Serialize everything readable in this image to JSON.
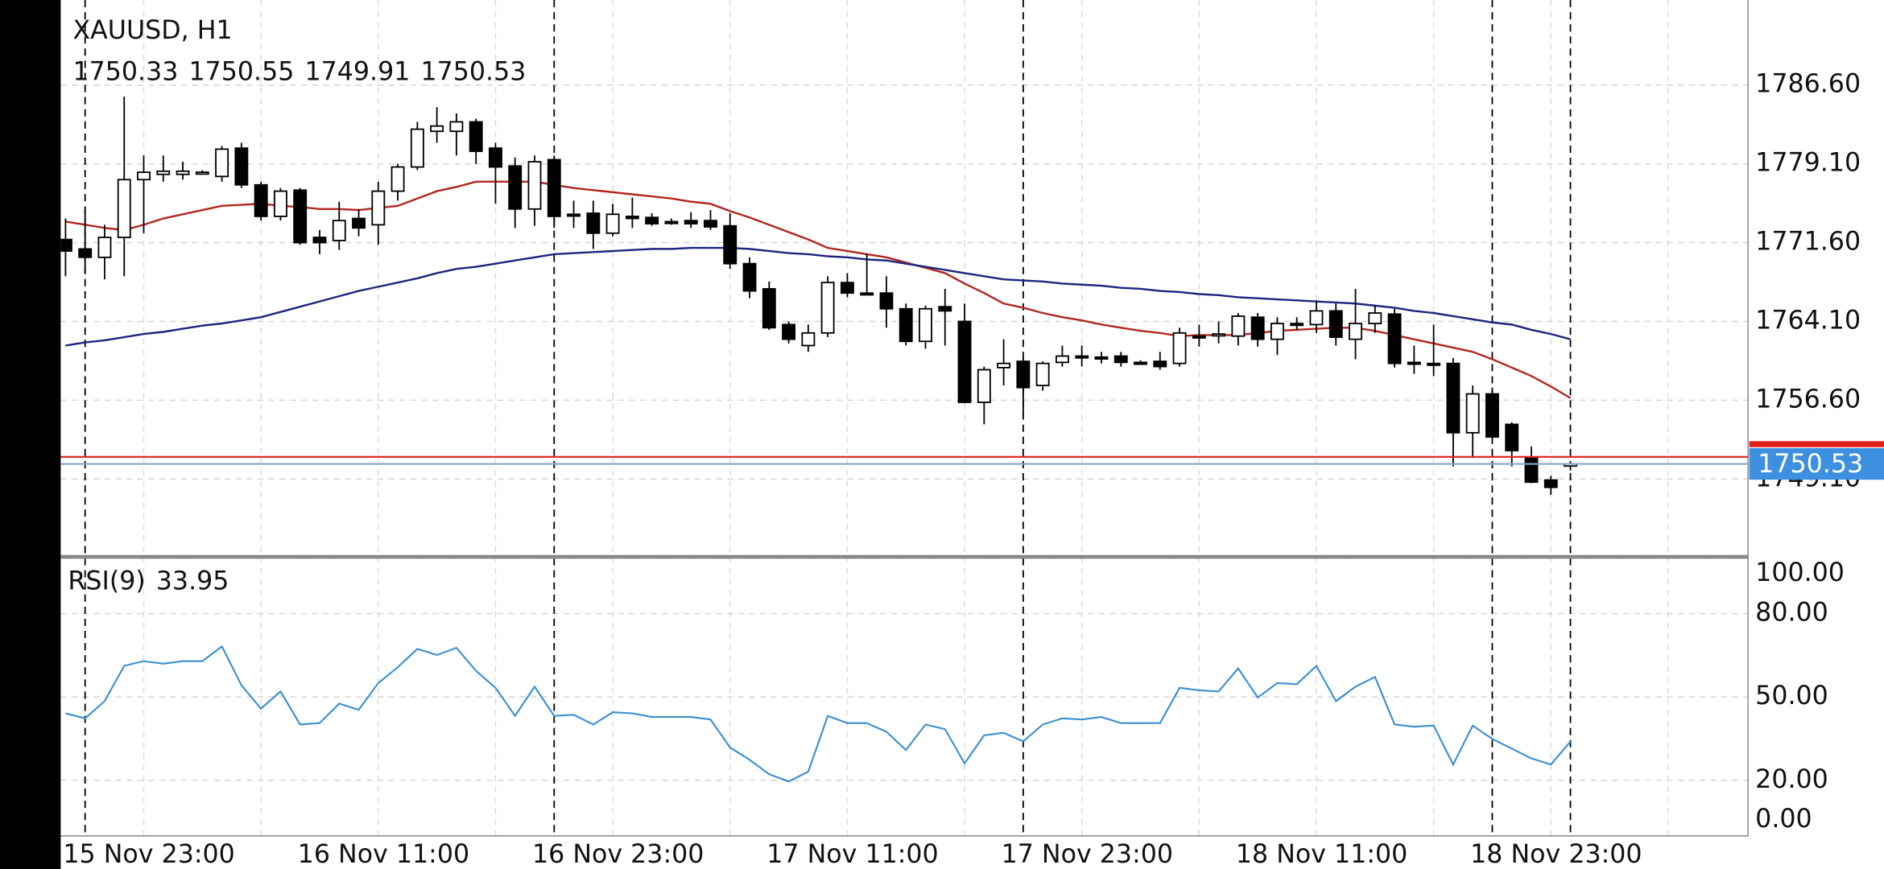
{
  "chart_data": [
    {
      "type": "candlestick",
      "title": "XAUUSD, H1",
      "categories": [
        "15 Nov 23:00",
        null,
        null,
        null,
        null,
        null,
        null,
        null,
        null,
        null,
        null,
        null,
        "16 Nov 11:00",
        null,
        null,
        null,
        null,
        null,
        null,
        null,
        null,
        null,
        null,
        null,
        "16 Nov 23:00",
        null,
        null,
        null,
        null,
        null,
        null,
        null,
        null,
        null,
        null,
        null,
        "17 Nov 11:00",
        null,
        null,
        null,
        null,
        null,
        null,
        null,
        null,
        null,
        null,
        null,
        "17 Nov 23:00",
        null,
        null,
        null,
        null,
        null,
        null,
        null,
        null,
        null,
        null,
        null,
        "18 Nov 11:00",
        null,
        null,
        null,
        null,
        null,
        null,
        null,
        null,
        null,
        null,
        null,
        "18 Nov 23:00",
        null,
        null,
        null,
        null,
        null
      ],
      "open": [
        1771.9,
        1771.0,
        1770.2,
        1772.1,
        1777.6,
        1778.1,
        1778.1,
        1778.3,
        1777.9,
        1780.6,
        1777.1,
        1774.1,
        1776.6,
        1772.1,
        1771.8,
        1773.9,
        1773.3,
        1776.5,
        1778.8,
        1782.2,
        1782.2,
        1783.1,
        1780.6,
        1778.9,
        1774.8,
        1779.5,
        1774.3,
        1774.4,
        1772.5,
        1774.1,
        1774.0,
        1773.6,
        1773.7,
        1773.7,
        1773.2,
        1769.6,
        1767.2,
        1763.8,
        1761.8,
        1763.0,
        1767.8,
        1766.8,
        1766.8,
        1765.3,
        1762.2,
        1765.5,
        1764.1,
        1756.4,
        1759.7,
        1760.3,
        1758.0,
        1760.2,
        1760.8,
        1760.7,
        1760.8,
        1760.2,
        1760.3,
        1760.1,
        1762.7,
        1762.8,
        1762.7,
        1764.5,
        1762.4,
        1763.9,
        1763.8,
        1765.1,
        1762.4,
        1763.9,
        1764.8,
        1760.2,
        1760.1,
        1760.1,
        1753.5,
        1757.2,
        1754.3,
        1751.1,
        1749.0,
        1750.33
      ],
      "high": [
        1773.9,
        1774.8,
        1773.3,
        1785.5,
        1779.9,
        1779.9,
        1779.3,
        1778.5,
        1780.8,
        1781.1,
        1777.4,
        1776.8,
        1776.8,
        1772.8,
        1775.5,
        1774.8,
        1777.4,
        1779.1,
        1783.1,
        1784.5,
        1783.9,
        1783.4,
        1781.1,
        1779.7,
        1779.9,
        1779.9,
        1775.6,
        1775.6,
        1775.3,
        1775.9,
        1774.4,
        1773.9,
        1774.5,
        1774.7,
        1774.4,
        1770.2,
        1767.9,
        1764.1,
        1763.8,
        1768.4,
        1768.7,
        1770.5,
        1768.4,
        1765.8,
        1765.6,
        1767.2,
        1765.8,
        1759.8,
        1762.4,
        1760.6,
        1760.3,
        1761.8,
        1761.8,
        1761.2,
        1761.2,
        1760.4,
        1761.2,
        1763.5,
        1763.8,
        1764.1,
        1764.9,
        1764.9,
        1764.5,
        1764.5,
        1766.1,
        1765.8,
        1767.2,
        1765.6,
        1765.3,
        1761.8,
        1763.8,
        1760.6,
        1758.0,
        1757.8,
        1754.5,
        1752.2,
        1749.4,
        1750.55
      ],
      "low": [
        1768.4,
        1768.7,
        1768.1,
        1768.4,
        1772.5,
        1777.4,
        1777.6,
        1778.1,
        1777.4,
        1776.8,
        1773.7,
        1773.7,
        1771.4,
        1770.5,
        1770.9,
        1772.2,
        1771.4,
        1775.6,
        1778.5,
        1781.1,
        1779.9,
        1779.1,
        1775.3,
        1773.0,
        1773.2,
        1773.0,
        1773.0,
        1771.0,
        1772.2,
        1773.0,
        1773.2,
        1773.3,
        1773.0,
        1772.8,
        1769.1,
        1766.3,
        1763.3,
        1762.0,
        1761.2,
        1762.6,
        1766.4,
        1766.6,
        1763.5,
        1761.8,
        1761.5,
        1761.8,
        1756.3,
        1754.3,
        1758.0,
        1755.2,
        1757.5,
        1759.8,
        1759.8,
        1760.1,
        1759.8,
        1760.0,
        1759.5,
        1759.8,
        1761.7,
        1762.0,
        1761.8,
        1761.7,
        1760.9,
        1763.3,
        1763.0,
        1761.8,
        1760.5,
        1763.0,
        1759.7,
        1759.1,
        1758.9,
        1750.3,
        1751.1,
        1752.9,
        1750.3,
        1748.7,
        1747.6,
        1749.91
      ],
      "close": [
        1770.8,
        1770.2,
        1772.1,
        1777.6,
        1778.3,
        1778.4,
        1778.4,
        1778.3,
        1780.5,
        1777.1,
        1774.1,
        1776.5,
        1771.6,
        1771.6,
        1773.7,
        1773.0,
        1776.5,
        1778.8,
        1782.4,
        1782.7,
        1783.1,
        1780.3,
        1778.8,
        1774.8,
        1779.3,
        1774.1,
        1774.2,
        1772.5,
        1774.3,
        1773.9,
        1773.4,
        1773.5,
        1773.4,
        1773.1,
        1769.6,
        1767.0,
        1763.5,
        1762.4,
        1763.0,
        1767.8,
        1766.8,
        1766.7,
        1765.3,
        1762.2,
        1765.3,
        1765.1,
        1756.4,
        1759.5,
        1760.1,
        1757.8,
        1760.1,
        1760.8,
        1760.7,
        1760.6,
        1760.2,
        1760.1,
        1759.8,
        1763.0,
        1762.6,
        1762.9,
        1764.6,
        1762.4,
        1763.9,
        1763.8,
        1765.1,
        1762.6,
        1763.9,
        1764.9,
        1760.1,
        1760.1,
        1760.0,
        1753.5,
        1757.2,
        1753.1,
        1751.8,
        1748.8,
        1748.3,
        1750.53
      ],
      "overlays": [
        {
          "color": "#b3261e",
          "values": [
            1773.6,
            1773.3,
            1773.0,
            1772.8,
            1773.3,
            1773.9,
            1774.3,
            1774.7,
            1775.1,
            1775.2,
            1775.3,
            1775.1,
            1775.0,
            1774.8,
            1774.8,
            1774.7,
            1774.9,
            1775.1,
            1775.8,
            1776.5,
            1776.9,
            1777.4,
            1777.4,
            1777.4,
            1777.4,
            1777.1,
            1776.8,
            1776.6,
            1776.4,
            1776.2,
            1776.0,
            1775.8,
            1775.5,
            1775.3,
            1774.6,
            1774.0,
            1773.3,
            1772.6,
            1771.9,
            1771.1,
            1770.8,
            1770.5,
            1770.2,
            1769.7,
            1769.2,
            1768.7,
            1767.7,
            1766.8,
            1765.8,
            1765.4,
            1764.9,
            1764.5,
            1764.2,
            1763.8,
            1763.5,
            1763.2,
            1763.0,
            1762.7,
            1762.8,
            1762.8,
            1762.8,
            1763.0,
            1763.2,
            1763.3,
            1763.4,
            1763.5,
            1763.5,
            1763.2,
            1762.8,
            1762.4,
            1762.0,
            1761.6,
            1761.2,
            1760.5,
            1759.7,
            1758.9,
            1757.9,
            1756.8
          ]
        },
        {
          "color": "#1c2480",
          "values": [
            1761.8,
            1762.1,
            1762.3,
            1762.6,
            1762.9,
            1763.1,
            1763.4,
            1763.7,
            1763.9,
            1764.2,
            1764.5,
            1765.0,
            1765.5,
            1766.0,
            1766.5,
            1767.0,
            1767.4,
            1767.8,
            1768.2,
            1768.7,
            1769.1,
            1769.3,
            1769.6,
            1769.9,
            1770.2,
            1770.5,
            1770.6,
            1770.7,
            1770.8,
            1770.9,
            1771.0,
            1771.0,
            1771.1,
            1771.1,
            1771.1,
            1771.0,
            1770.8,
            1770.6,
            1770.5,
            1770.3,
            1770.2,
            1770.0,
            1769.9,
            1769.6,
            1769.3,
            1769.0,
            1768.7,
            1768.4,
            1768.1,
            1768.0,
            1767.9,
            1767.7,
            1767.6,
            1767.5,
            1767.3,
            1767.2,
            1767.0,
            1766.9,
            1766.7,
            1766.6,
            1766.4,
            1766.3,
            1766.2,
            1766.1,
            1766.0,
            1765.9,
            1765.8,
            1765.6,
            1765.4,
            1765.1,
            1764.9,
            1764.6,
            1764.3,
            1764.0,
            1763.8,
            1763.3,
            1762.9,
            1762.4
          ]
        }
      ],
      "up_color": "#ffffff",
      "down_color": "#000000",
      "ask": 1751.2,
      "ask_color": "#e0201b",
      "price_color": "#3d8fe0",
      "ylim": [
        1741.8,
        1794.7
      ],
      "yticks": [
        {
          "value": 1786.6,
          "label": "1786.60"
        },
        {
          "value": 1779.1,
          "label": "1779.10"
        },
        {
          "value": 1771.6,
          "label": "1771.60"
        },
        {
          "value": 1764.1,
          "label": "1764.10"
        },
        {
          "value": 1756.6,
          "label": "1756.60"
        },
        {
          "value": 1749.1,
          "label": "1749.10"
        }
      ],
      "grid": true
    },
    {
      "type": "line",
      "label": "RSI(9)",
      "color": "#3a8fd0",
      "values": [
        44.1,
        42.3,
        48.5,
        61.2,
        62.9,
        62.0,
        62.9,
        62.9,
        68.2,
        54.2,
        45.8,
        52.0,
        40.1,
        40.6,
        47.6,
        45.4,
        55.0,
        60.7,
        67.3,
        65.1,
        67.7,
        59.4,
        53.3,
        43.2,
        53.7,
        43.2,
        43.6,
        40.1,
        44.5,
        44.1,
        42.8,
        42.8,
        42.8,
        41.9,
        31.8,
        27.4,
        22.2,
        19.6,
        23.1,
        43.2,
        40.6,
        40.6,
        37.5,
        30.9,
        40.1,
        38.4,
        26.1,
        36.2,
        37.1,
        34.0,
        40.1,
        42.3,
        41.9,
        42.8,
        40.6,
        40.6,
        40.6,
        53.3,
        52.4,
        52.0,
        60.3,
        49.8,
        55.0,
        54.6,
        61.2,
        48.5,
        53.7,
        57.2,
        40.1,
        39.3,
        39.7,
        25.7,
        39.7,
        34.9,
        31.4,
        27.9,
        25.7,
        33.95
      ],
      "ylim": [
        0,
        100
      ],
      "yticks": [
        {
          "value": 100,
          "label": "100.00"
        },
        {
          "value": 80,
          "label": "80.00"
        },
        {
          "value": 50,
          "label": "50.00"
        },
        {
          "value": 20,
          "label": "20.00"
        },
        {
          "value": 0,
          "label": "0.00"
        }
      ],
      "grid": true
    }
  ]
}
